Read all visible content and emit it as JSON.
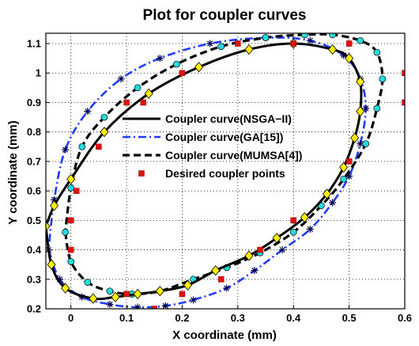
{
  "chart_data": {
    "type": "line",
    "title": "Plot for coupler curves",
    "xlabel": "X coordinate (mm)",
    "ylabel": "Y coordinate (mm)",
    "xlim": [
      -0.045,
      0.6
    ],
    "ylim": [
      0.2,
      1.135
    ],
    "x_ticks": [
      "0",
      "0.1",
      "0.2",
      "0.3",
      "0.4",
      "0.5",
      "0.6"
    ],
    "y_ticks": [
      "0.2",
      "0.3",
      "0.4",
      "0.5",
      "0.6",
      "0.7",
      "0.8",
      "0.9",
      "1",
      "1.1"
    ],
    "grid": true,
    "legend_position": "center",
    "series": [
      {
        "name": "Coupler curve(NSGA−II)",
        "style": "solid",
        "color": "#000000",
        "marker": "diamond",
        "marker_color": "#ffee00",
        "x": [
          -0.045,
          -0.035,
          -0.01,
          0.04,
          0.08,
          0.12,
          0.16,
          0.21,
          0.26,
          0.32,
          0.37,
          0.42,
          0.46,
          0.49,
          0.51,
          0.52,
          0.52,
          0.5,
          0.47,
          0.4,
          0.32,
          0.23,
          0.14,
          0.06,
          0.0,
          -0.03,
          -0.045
        ],
        "y": [
          0.48,
          0.35,
          0.27,
          0.235,
          0.24,
          0.25,
          0.26,
          0.28,
          0.33,
          0.38,
          0.44,
          0.51,
          0.59,
          0.68,
          0.78,
          0.87,
          0.97,
          1.05,
          1.08,
          1.1,
          1.08,
          1.02,
          0.93,
          0.8,
          0.64,
          0.55,
          0.48
        ]
      },
      {
        "name": "Coupler curve(GA[15])",
        "style": "dash-dot",
        "color": "#1e3cff",
        "marker": "asterisk",
        "marker_color": "#000055",
        "x": [
          -0.04,
          -0.02,
          0.02,
          0.07,
          0.12,
          0.17,
          0.22,
          0.28,
          0.33,
          0.38,
          0.43,
          0.47,
          0.5,
          0.52,
          0.53,
          0.52,
          0.49,
          0.43,
          0.35,
          0.25,
          0.16,
          0.09,
          0.03,
          -0.01,
          -0.03,
          -0.04
        ],
        "y": [
          0.4,
          0.3,
          0.24,
          0.215,
          0.205,
          0.21,
          0.23,
          0.27,
          0.33,
          0.4,
          0.47,
          0.56,
          0.65,
          0.76,
          0.88,
          0.98,
          1.06,
          1.11,
          1.12,
          1.1,
          1.05,
          0.98,
          0.87,
          0.74,
          0.57,
          0.4
        ]
      },
      {
        "name": "Coupler curve(MUMSA[4])",
        "style": "dashed",
        "color": "#000000",
        "marker": "circle",
        "marker_color": "#22dddd",
        "x": [
          -0.01,
          0.0,
          0.03,
          0.07,
          0.11,
          0.16,
          0.22,
          0.28,
          0.34,
          0.4,
          0.45,
          0.49,
          0.53,
          0.55,
          0.56,
          0.55,
          0.52,
          0.47,
          0.42,
          0.35,
          0.27,
          0.19,
          0.12,
          0.06,
          0.02,
          0.0,
          -0.01
        ],
        "y": [
          0.46,
          0.36,
          0.29,
          0.26,
          0.25,
          0.26,
          0.3,
          0.34,
          0.39,
          0.46,
          0.55,
          0.64,
          0.76,
          0.88,
          0.98,
          1.07,
          1.11,
          1.13,
          1.13,
          1.12,
          1.09,
          1.03,
          0.95,
          0.85,
          0.75,
          0.61,
          0.46
        ]
      },
      {
        "name": "Desired coupler points",
        "style": "none",
        "marker": "square",
        "marker_color": "#dd1111",
        "x": [
          0.0,
          0.01,
          0.05,
          0.1,
          0.15,
          0.2,
          0.27,
          0.34,
          0.4,
          0.5,
          0.6,
          0.6,
          0.5,
          0.4,
          0.3,
          0.2,
          0.13,
          0.1,
          0.0
        ],
        "y": [
          0.4,
          0.6,
          0.75,
          0.9,
          0.2,
          0.25,
          0.3,
          0.4,
          0.5,
          0.7,
          0.9,
          1.0,
          1.1,
          1.1,
          1.1,
          1.0,
          0.9,
          0.25,
          0.5
        ]
      }
    ]
  }
}
